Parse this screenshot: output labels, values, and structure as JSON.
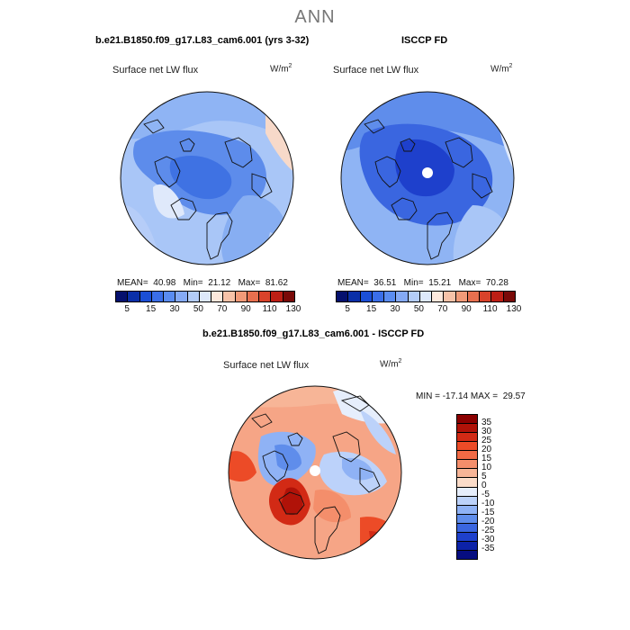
{
  "figure": {
    "title": "ANN"
  },
  "panels": [
    {
      "case_title": "b.e21.B1850.f09_g17.L83_cam6.001 (yrs 3-32)",
      "variable": "Surface net LW flux",
      "units": "W/m",
      "units_sup": "2",
      "mean_label": "MEAN=",
      "mean": "40.98",
      "min_label": "Min=",
      "min": "21.12",
      "max_label": "Max=",
      "max": "81.62"
    },
    {
      "case_title": "ISCCP FD",
      "variable": "Surface net LW flux",
      "units": "W/m",
      "units_sup": "2",
      "mean_label": "MEAN=",
      "mean": "36.51",
      "min_label": "Min=",
      "min": "15.21",
      "max_label": "Max=",
      "max": "70.28"
    }
  ],
  "colorbar_top": {
    "labels": [
      "5",
      "15",
      "30",
      "50",
      "70",
      "90",
      "110",
      "130"
    ],
    "colors": [
      "#05106e",
      "#0a2fa8",
      "#1b4fd6",
      "#3a6ee8",
      "#5a8cf0",
      "#85aaf5",
      "#b3ccf8",
      "#dde9fb",
      "#fde8dc",
      "#f7c2a8",
      "#f19a78",
      "#e8704f",
      "#d9432b",
      "#bd1f15",
      "#7a0a08"
    ]
  },
  "difference": {
    "title": "b.e21.B1850.f09_g17.L83_cam6.001 - ISCCP FD",
    "variable": "Surface net LW flux",
    "units": "W/m",
    "units_sup": "2",
    "minmax_text": "MIN = -17.14 MAX =  29.57",
    "colorbar": {
      "labels": [
        "35",
        "30",
        "25",
        "20",
        "15",
        "10",
        "5",
        "0",
        "-5",
        "-10",
        "-15",
        "-20",
        "-25",
        "-30",
        "-35"
      ],
      "colors": [
        "#8b0000",
        "#b01208",
        "#d22a15",
        "#ec4b27",
        "#f26a45",
        "#f48e6b",
        "#f7b597",
        "#fbdcc9",
        "#e6eefc",
        "#bcd2fa",
        "#8fb2f5",
        "#5f8deb",
        "#3a66e0",
        "#1e40cc",
        "#0c22a8",
        "#060d80"
      ]
    }
  }
}
